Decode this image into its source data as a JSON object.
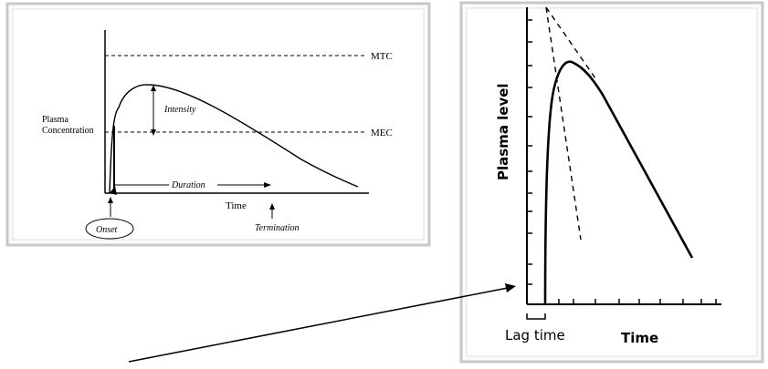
{
  "left_figure": {
    "labels": {
      "mtc": "MTC",
      "mec": "MEC",
      "plasma_concentration_line1": "Plasma",
      "plasma_concentration_line2": "Concentration",
      "intensity": "Intensity",
      "duration": "Duration",
      "time": "Time",
      "onset": "Onset",
      "termination": "Termination"
    }
  },
  "right_figure": {
    "labels": {
      "y_axis": "Plasma level",
      "x_axis": "Time",
      "lag_time": "Lag time"
    }
  },
  "colors": {
    "frame": "#c8c8c8",
    "ink": "#000000",
    "background": "#ffffff"
  }
}
